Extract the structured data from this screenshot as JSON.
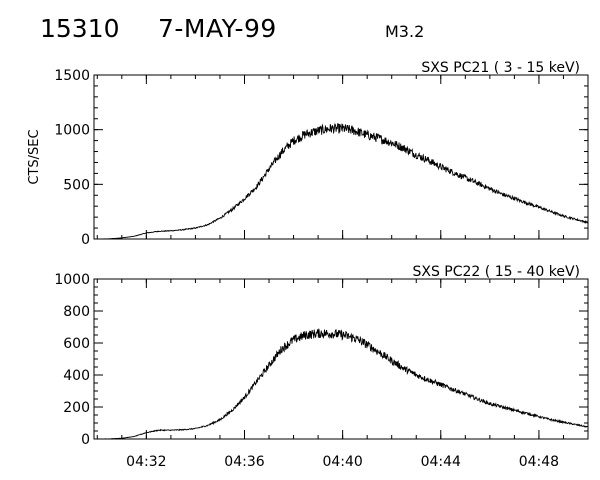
{
  "header": {
    "event_id": "15310",
    "date": "7-MAY-99",
    "flare_class": "M3.2"
  },
  "chart_data": [
    {
      "type": "line",
      "title": "SXS PC21  (  3 - 15 keV)",
      "ylabel": "CTS/SEC",
      "ylim": [
        0,
        1500
      ],
      "yticks": [
        0,
        500,
        1000,
        1500
      ],
      "y_minor_step": 100,
      "xlim": [
        "04:29:52",
        "04:50:00"
      ],
      "xticks": [
        "04:32",
        "04:36",
        "04:40",
        "04:44",
        "04:48"
      ],
      "x_minor_step_min": 1,
      "series": [
        {
          "x": [
            "04:29:52",
            "04:30:30",
            "04:31:00",
            "04:31:30",
            "04:32:00",
            "04:32:30",
            "04:33:00",
            "04:33:30",
            "04:34:00",
            "04:34:30",
            "04:35:00",
            "04:35:30",
            "04:36:00",
            "04:36:30",
            "04:37:00",
            "04:37:30",
            "04:38:00",
            "04:38:30",
            "04:39:00",
            "04:39:30",
            "04:40:00",
            "04:40:30",
            "04:41:00",
            "04:41:30",
            "04:42:00",
            "04:42:30",
            "04:43:00",
            "04:43:30",
            "04:44:00",
            "04:44:30",
            "04:45:00",
            "04:45:30",
            "04:46:00",
            "04:46:30",
            "04:47:00",
            "04:47:30",
            "04:48:00",
            "04:48:30",
            "04:49:00",
            "04:49:30",
            "04:50:00"
          ],
          "y": [
            0,
            2,
            10,
            25,
            55,
            70,
            75,
            85,
            100,
            130,
            190,
            270,
            370,
            480,
            640,
            790,
            900,
            960,
            990,
            1010,
            1010,
            990,
            950,
            920,
            880,
            830,
            770,
            720,
            660,
            610,
            560,
            510,
            460,
            410,
            370,
            330,
            290,
            250,
            210,
            180,
            150
          ]
        }
      ]
    },
    {
      "type": "line",
      "title": "SXS PC22  ( 15 - 40 keV)",
      "ylabel": "",
      "ylim": [
        0,
        1000
      ],
      "yticks": [
        0,
        200,
        400,
        600,
        800,
        1000
      ],
      "y_minor_step": 50,
      "xlim": [
        "04:29:52",
        "04:50:00"
      ],
      "xticks": [
        "04:32",
        "04:36",
        "04:40",
        "04:44",
        "04:48"
      ],
      "x_minor_step_min": 1,
      "series": [
        {
          "x": [
            "04:29:52",
            "04:30:30",
            "04:31:00",
            "04:31:30",
            "04:32:00",
            "04:32:30",
            "04:33:00",
            "04:33:30",
            "04:34:00",
            "04:34:30",
            "04:35:00",
            "04:35:30",
            "04:36:00",
            "04:36:30",
            "04:37:00",
            "04:37:30",
            "04:38:00",
            "04:38:30",
            "04:39:00",
            "04:39:30",
            "04:40:00",
            "04:40:30",
            "04:41:00",
            "04:41:30",
            "04:42:00",
            "04:42:30",
            "04:43:00",
            "04:43:30",
            "04:44:00",
            "04:44:30",
            "04:45:00",
            "04:45:30",
            "04:46:00",
            "04:46:30",
            "04:47:00",
            "04:47:30",
            "04:48:00",
            "04:48:30",
            "04:49:00",
            "04:49:30",
            "04:50:00"
          ],
          "y": [
            0,
            1,
            5,
            15,
            40,
            55,
            55,
            58,
            65,
            85,
            120,
            180,
            260,
            360,
            460,
            560,
            620,
            650,
            660,
            660,
            650,
            630,
            590,
            540,
            490,
            440,
            400,
            370,
            340,
            310,
            280,
            250,
            220,
            200,
            180,
            160,
            140,
            120,
            105,
            90,
            75
          ]
        }
      ]
    }
  ]
}
